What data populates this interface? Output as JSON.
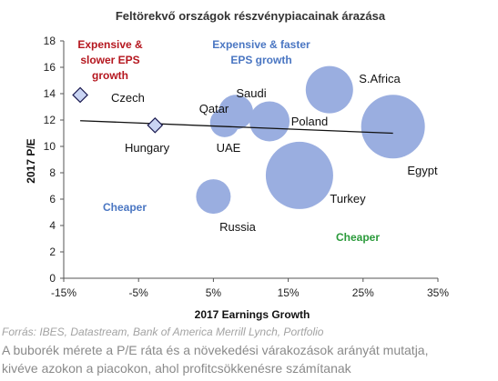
{
  "chart_data": {
    "type": "scatter",
    "title": "Feltörekvő országok részvénypiacainak árazása",
    "xlabel": "2017 Earnings Growth",
    "ylabel": "2017 P/E",
    "xlim": [
      -15,
      35
    ],
    "ylim": [
      0,
      18
    ],
    "x_ticks": [
      -15,
      -5,
      5,
      15,
      25,
      35
    ],
    "x_tick_labels": [
      "-15%",
      "-5%",
      "5%",
      "15%",
      "25%",
      "35%"
    ],
    "y_ticks": [
      0,
      2,
      4,
      6,
      8,
      10,
      12,
      14,
      16,
      18
    ],
    "y_tick_labels": [
      "0",
      "2",
      "4",
      "6",
      "8",
      "10",
      "12",
      "14",
      "16",
      "18"
    ],
    "grid": false,
    "bubble_color": "#9aaee0",
    "marker_color": "#c9d4f3",
    "bubbles": [
      {
        "label": "Russia",
        "x": 5.0,
        "y": 6.2,
        "size": 19
      },
      {
        "label": "Turkey",
        "x": 16.5,
        "y": 7.8,
        "size": 37
      },
      {
        "label": "UAE",
        "x": 6.5,
        "y": 11.8,
        "size": 16
      },
      {
        "label": "Qatar",
        "x": 8.0,
        "y": 12.6,
        "size": 19
      },
      {
        "label": "Saudi",
        "x": 12.5,
        "y": 11.9,
        "size": 22
      },
      {
        "label": "Poland",
        "x": 20.5,
        "y": 14.3,
        "size": 26
      },
      {
        "label": "S.Africa",
        "x": 29.0,
        "y": 11.5,
        "size": 35
      },
      {
        "label": "Egypt",
        "x": 29.0,
        "y": 11.5,
        "size": 0
      }
    ],
    "markers": [
      {
        "label": "Czech",
        "x": -12.8,
        "y": 13.9,
        "shape": "diamond"
      },
      {
        "label": "Hungary",
        "x": -2.8,
        "y": 11.6,
        "shape": "diamond"
      }
    ],
    "trendline": {
      "x": [
        -12.8,
        29.0
      ],
      "y": [
        11.95,
        11.0
      ],
      "color": "#111111"
    },
    "annotations": [
      {
        "lines": [
          "Expensive &",
          "slower EPS",
          "growth"
        ],
        "color": "#b5171f"
      },
      {
        "lines": [
          "Expensive  & faster",
          "EPS growth"
        ],
        "color": "#4a76c2"
      },
      {
        "lines": [
          "Cheaper"
        ],
        "color": "#4a76c2"
      },
      {
        "lines": [
          "Cheaper"
        ],
        "color": "#2a9a3a"
      }
    ]
  },
  "source": "Forrás: IBES, Datastream, Bank of America Merrill Lynch, Portfolio",
  "note_line1": "A buborék mérete a P/E ráta és a növekedési várakozások arányát mutatja,",
  "note_line2": "kivéve azokon a piacokon, ahol profitcsökkenésre számítanak"
}
